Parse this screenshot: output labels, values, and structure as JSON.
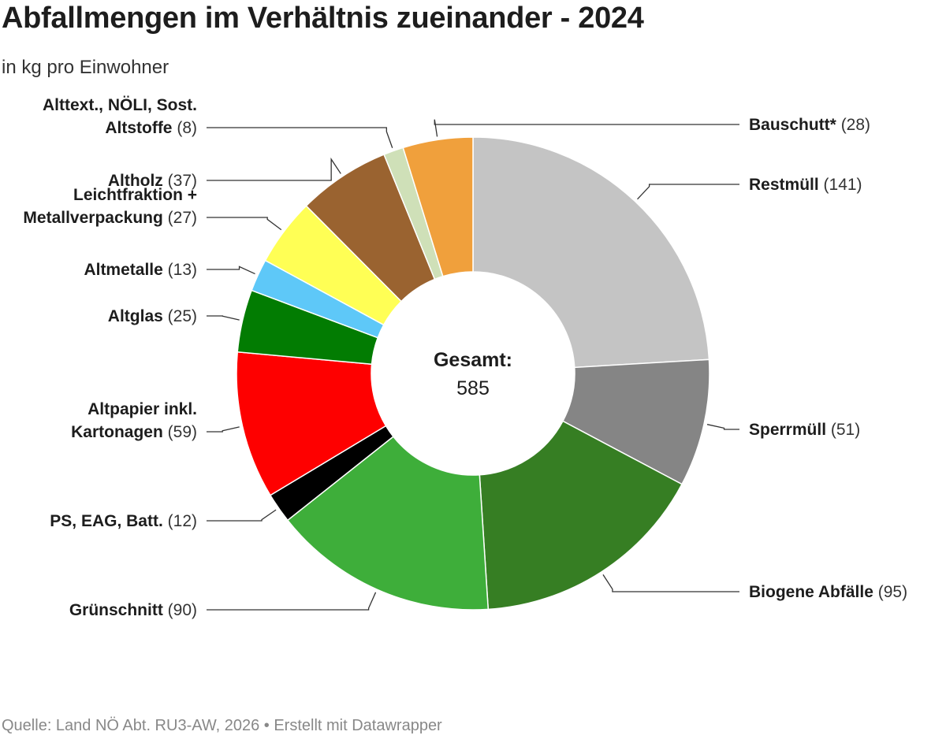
{
  "title": "Abfallmengen im Verhältnis zueinander - 2024",
  "subtitle": "in kg pro Einwohner",
  "footer": "Quelle: Land NÖ Abt. RU3-AW, 2026 • Erstellt mit Datawrapper",
  "chart_data": {
    "type": "pie",
    "donut": true,
    "center_label": "Gesamt:",
    "center_value": "585",
    "unit": "kg pro Einwohner",
    "slices": [
      {
        "label": "Restmüll",
        "value": 141,
        "value_label": "(141)",
        "color": "#c4c4c4",
        "label_lines": [
          "Restmüll"
        ]
      },
      {
        "label": "Sperrmüll",
        "value": 51,
        "value_label": "(51)",
        "color": "#858585",
        "label_lines": [
          "Sperrmüll"
        ]
      },
      {
        "label": "Biogene Abfälle",
        "value": 95,
        "value_label": "(95)",
        "color": "#367e23",
        "label_lines": [
          "Biogene Abfälle"
        ]
      },
      {
        "label": "Grünschnitt",
        "value": 90,
        "value_label": "(90)",
        "color": "#3eae3a",
        "label_lines": [
          "Grünschnitt"
        ]
      },
      {
        "label": "PS, EAG, Batt.",
        "value": 12,
        "value_label": "(12)",
        "color": "#000000",
        "label_lines": [
          "PS, EAG, Batt."
        ]
      },
      {
        "label": "Altpapier inkl. Kartonagen",
        "value": 59,
        "value_label": "(59)",
        "color": "#fe0000",
        "label_lines": [
          "Altpapier inkl.",
          "Kartonagen"
        ]
      },
      {
        "label": "Altglas",
        "value": 25,
        "value_label": "(25)",
        "color": "#027c02",
        "label_lines": [
          "Altglas"
        ]
      },
      {
        "label": "Altmetalle",
        "value": 13,
        "value_label": "(13)",
        "color": "#5ec8f8",
        "label_lines": [
          "Altmetalle"
        ]
      },
      {
        "label": "Leichtfraktion + Metallverpackung",
        "value": 27,
        "value_label": "(27)",
        "color": "#ffff55",
        "label_lines": [
          "Leichtfraktion +",
          "Metallverpackung"
        ]
      },
      {
        "label": "Altholz",
        "value": 37,
        "value_label": "(37)",
        "color": "#9a6330",
        "label_lines": [
          "Altholz"
        ]
      },
      {
        "label": "Alttext., NÖLI, Sost. Altstoffe",
        "value": 8,
        "value_label": "(8)",
        "color": "#cfe0b8",
        "label_lines": [
          "Alttext., NÖLI, Sost.",
          "Altstoffe"
        ]
      },
      {
        "label": "Bauschutt*",
        "value": 28,
        "value_label": "(28)",
        "color": "#f0a03c",
        "label_lines": [
          "Bauschutt*"
        ]
      }
    ]
  }
}
